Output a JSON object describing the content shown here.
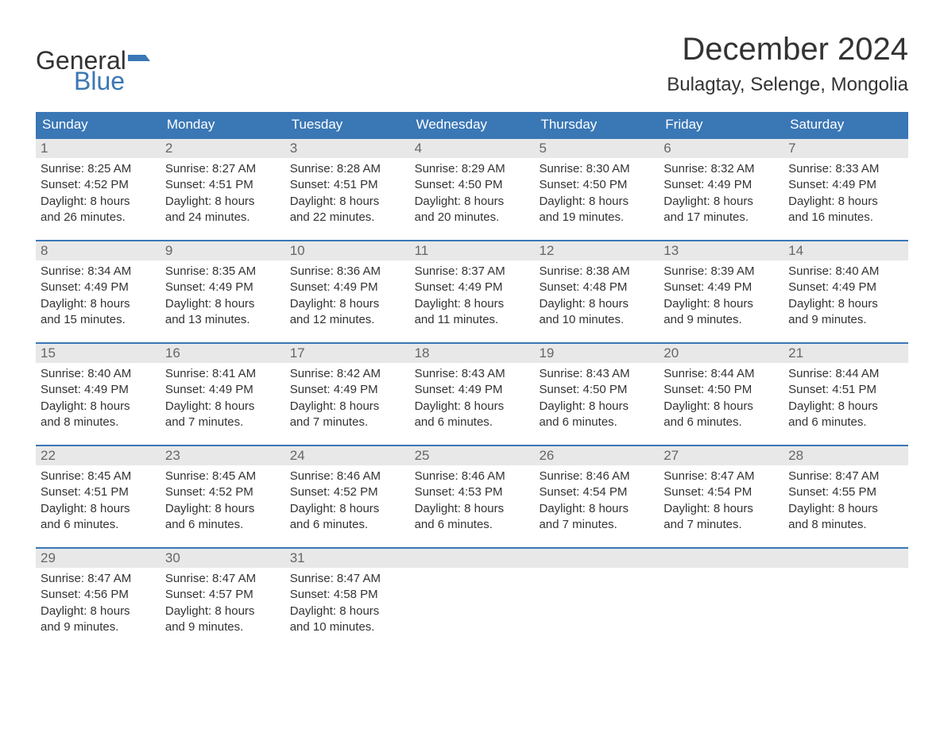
{
  "colors": {
    "header_blue": "#3a77b5",
    "text_dark": "#333333",
    "daynum_bg": "#e8e8e8",
    "daynum_text": "#666666",
    "background": "#ffffff"
  },
  "typography": {
    "month_title_fontsize": 40,
    "location_fontsize": 24,
    "dow_fontsize": 17,
    "daynum_fontsize": 17,
    "body_fontsize": 15,
    "logo_fontsize": 32,
    "font_family": "Arial"
  },
  "logo": {
    "line1": "General",
    "line2": "Blue"
  },
  "title": "December 2024",
  "location": "Bulagtay, Selenge, Mongolia",
  "days_of_week": [
    "Sunday",
    "Monday",
    "Tuesday",
    "Wednesday",
    "Thursday",
    "Friday",
    "Saturday"
  ],
  "weeks": [
    [
      {
        "n": "1",
        "sr": "Sunrise: 8:25 AM",
        "ss": "Sunset: 4:52 PM",
        "d1": "Daylight: 8 hours",
        "d2": "and 26 minutes."
      },
      {
        "n": "2",
        "sr": "Sunrise: 8:27 AM",
        "ss": "Sunset: 4:51 PM",
        "d1": "Daylight: 8 hours",
        "d2": "and 24 minutes."
      },
      {
        "n": "3",
        "sr": "Sunrise: 8:28 AM",
        "ss": "Sunset: 4:51 PM",
        "d1": "Daylight: 8 hours",
        "d2": "and 22 minutes."
      },
      {
        "n": "4",
        "sr": "Sunrise: 8:29 AM",
        "ss": "Sunset: 4:50 PM",
        "d1": "Daylight: 8 hours",
        "d2": "and 20 minutes."
      },
      {
        "n": "5",
        "sr": "Sunrise: 8:30 AM",
        "ss": "Sunset: 4:50 PM",
        "d1": "Daylight: 8 hours",
        "d2": "and 19 minutes."
      },
      {
        "n": "6",
        "sr": "Sunrise: 8:32 AM",
        "ss": "Sunset: 4:49 PM",
        "d1": "Daylight: 8 hours",
        "d2": "and 17 minutes."
      },
      {
        "n": "7",
        "sr": "Sunrise: 8:33 AM",
        "ss": "Sunset: 4:49 PM",
        "d1": "Daylight: 8 hours",
        "d2": "and 16 minutes."
      }
    ],
    [
      {
        "n": "8",
        "sr": "Sunrise: 8:34 AM",
        "ss": "Sunset: 4:49 PM",
        "d1": "Daylight: 8 hours",
        "d2": "and 15 minutes."
      },
      {
        "n": "9",
        "sr": "Sunrise: 8:35 AM",
        "ss": "Sunset: 4:49 PM",
        "d1": "Daylight: 8 hours",
        "d2": "and 13 minutes."
      },
      {
        "n": "10",
        "sr": "Sunrise: 8:36 AM",
        "ss": "Sunset: 4:49 PM",
        "d1": "Daylight: 8 hours",
        "d2": "and 12 minutes."
      },
      {
        "n": "11",
        "sr": "Sunrise: 8:37 AM",
        "ss": "Sunset: 4:49 PM",
        "d1": "Daylight: 8 hours",
        "d2": "and 11 minutes."
      },
      {
        "n": "12",
        "sr": "Sunrise: 8:38 AM",
        "ss": "Sunset: 4:48 PM",
        "d1": "Daylight: 8 hours",
        "d2": "and 10 minutes."
      },
      {
        "n": "13",
        "sr": "Sunrise: 8:39 AM",
        "ss": "Sunset: 4:49 PM",
        "d1": "Daylight: 8 hours",
        "d2": "and 9 minutes."
      },
      {
        "n": "14",
        "sr": "Sunrise: 8:40 AM",
        "ss": "Sunset: 4:49 PM",
        "d1": "Daylight: 8 hours",
        "d2": "and 9 minutes."
      }
    ],
    [
      {
        "n": "15",
        "sr": "Sunrise: 8:40 AM",
        "ss": "Sunset: 4:49 PM",
        "d1": "Daylight: 8 hours",
        "d2": "and 8 minutes."
      },
      {
        "n": "16",
        "sr": "Sunrise: 8:41 AM",
        "ss": "Sunset: 4:49 PM",
        "d1": "Daylight: 8 hours",
        "d2": "and 7 minutes."
      },
      {
        "n": "17",
        "sr": "Sunrise: 8:42 AM",
        "ss": "Sunset: 4:49 PM",
        "d1": "Daylight: 8 hours",
        "d2": "and 7 minutes."
      },
      {
        "n": "18",
        "sr": "Sunrise: 8:43 AM",
        "ss": "Sunset: 4:49 PM",
        "d1": "Daylight: 8 hours",
        "d2": "and 6 minutes."
      },
      {
        "n": "19",
        "sr": "Sunrise: 8:43 AM",
        "ss": "Sunset: 4:50 PM",
        "d1": "Daylight: 8 hours",
        "d2": "and 6 minutes."
      },
      {
        "n": "20",
        "sr": "Sunrise: 8:44 AM",
        "ss": "Sunset: 4:50 PM",
        "d1": "Daylight: 8 hours",
        "d2": "and 6 minutes."
      },
      {
        "n": "21",
        "sr": "Sunrise: 8:44 AM",
        "ss": "Sunset: 4:51 PM",
        "d1": "Daylight: 8 hours",
        "d2": "and 6 minutes."
      }
    ],
    [
      {
        "n": "22",
        "sr": "Sunrise: 8:45 AM",
        "ss": "Sunset: 4:51 PM",
        "d1": "Daylight: 8 hours",
        "d2": "and 6 minutes."
      },
      {
        "n": "23",
        "sr": "Sunrise: 8:45 AM",
        "ss": "Sunset: 4:52 PM",
        "d1": "Daylight: 8 hours",
        "d2": "and 6 minutes."
      },
      {
        "n": "24",
        "sr": "Sunrise: 8:46 AM",
        "ss": "Sunset: 4:52 PM",
        "d1": "Daylight: 8 hours",
        "d2": "and 6 minutes."
      },
      {
        "n": "25",
        "sr": "Sunrise: 8:46 AM",
        "ss": "Sunset: 4:53 PM",
        "d1": "Daylight: 8 hours",
        "d2": "and 6 minutes."
      },
      {
        "n": "26",
        "sr": "Sunrise: 8:46 AM",
        "ss": "Sunset: 4:54 PM",
        "d1": "Daylight: 8 hours",
        "d2": "and 7 minutes."
      },
      {
        "n": "27",
        "sr": "Sunrise: 8:47 AM",
        "ss": "Sunset: 4:54 PM",
        "d1": "Daylight: 8 hours",
        "d2": "and 7 minutes."
      },
      {
        "n": "28",
        "sr": "Sunrise: 8:47 AM",
        "ss": "Sunset: 4:55 PM",
        "d1": "Daylight: 8 hours",
        "d2": "and 8 minutes."
      }
    ],
    [
      {
        "n": "29",
        "sr": "Sunrise: 8:47 AM",
        "ss": "Sunset: 4:56 PM",
        "d1": "Daylight: 8 hours",
        "d2": "and 9 minutes."
      },
      {
        "n": "30",
        "sr": "Sunrise: 8:47 AM",
        "ss": "Sunset: 4:57 PM",
        "d1": "Daylight: 8 hours",
        "d2": "and 9 minutes."
      },
      {
        "n": "31",
        "sr": "Sunrise: 8:47 AM",
        "ss": "Sunset: 4:58 PM",
        "d1": "Daylight: 8 hours",
        "d2": "and 10 minutes."
      },
      {
        "empty": true
      },
      {
        "empty": true
      },
      {
        "empty": true
      },
      {
        "empty": true
      }
    ]
  ]
}
